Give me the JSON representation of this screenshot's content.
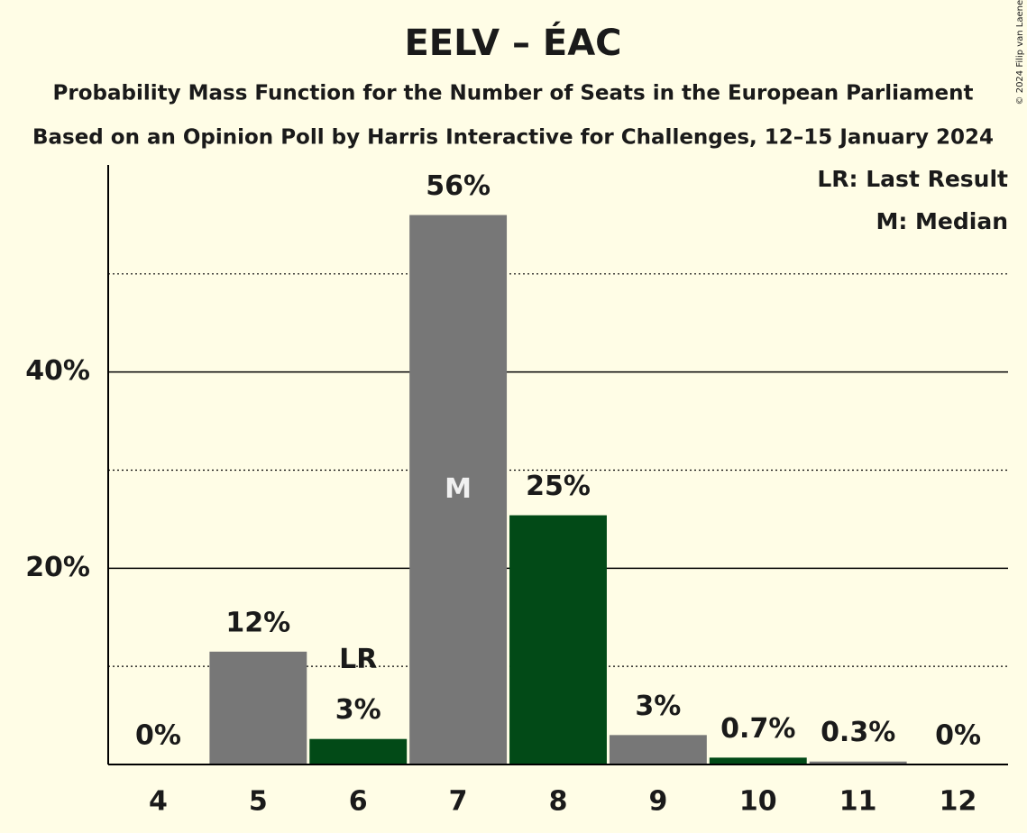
{
  "chart_data": {
    "type": "bar",
    "title": "EELV – ÉAC",
    "subtitle": "Probability Mass Function for the Number of Seats in the European Parliament",
    "subtitle2": "Based on an Opinion Poll by Harris Interactive for Challenges, 12–15 January 2024",
    "copyright": "© 2024 Filip van Laenen",
    "categories": [
      "4",
      "5",
      "6",
      "7",
      "8",
      "9",
      "10",
      "11",
      "12"
    ],
    "values": [
      0,
      11.5,
      2.6,
      56,
      25.4,
      3.0,
      0.7,
      0.3,
      0
    ],
    "value_labels": [
      "0%",
      "12%",
      "3%",
      "56%",
      "25%",
      "3%",
      "0.7%",
      "0.3%",
      "0%"
    ],
    "colors": [
      "#777777",
      "#777777",
      "#024a17",
      "#777777",
      "#024a17",
      "#777777",
      "#024a17",
      "#777777",
      "#024a17"
    ],
    "ylim": [
      0,
      61.1
    ],
    "yticks": [
      {
        "value": 20,
        "label": "20%"
      },
      {
        "value": 40,
        "label": "40%"
      }
    ],
    "yminor": [
      10,
      30,
      50
    ],
    "grid": true,
    "annotations": [
      {
        "text": "LR",
        "category": "6"
      },
      {
        "text": "M",
        "category": "7"
      }
    ],
    "legend": [
      "LR: Last Result",
      "M: Median"
    ],
    "legend_position": "upper right"
  }
}
